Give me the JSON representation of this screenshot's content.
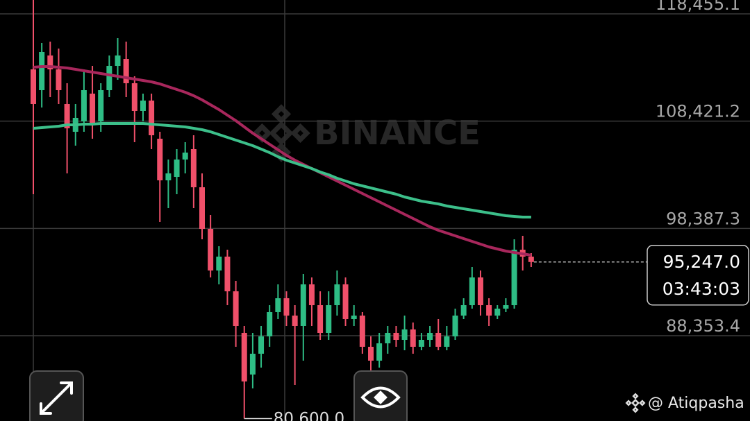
{
  "chart_data": {
    "type": "candlestick",
    "watermark": "BINANCE",
    "credit": "@ Atiqpasha",
    "up_color": "#2ebd85",
    "down_color": "#f0506a",
    "ylim": [
      80376,
      119752
    ],
    "yticks": [
      {
        "value": 88353.4,
        "label": "88,353.4"
      },
      {
        "value": 98387.3,
        "label": "98,387.3"
      },
      {
        "value": 108421.2,
        "label": "108,421.2"
      },
      {
        "value": 118455.1,
        "label": "118,455.1"
      }
    ],
    "grid": true,
    "open": [
      113265,
      111319,
      114562,
      113265,
      110022,
      107427,
      108400,
      110995,
      108400,
      111319,
      113589,
      114238,
      111968,
      109373,
      110346,
      106778,
      102886,
      103210,
      104832,
      105805,
      102237,
      98345,
      94453,
      95750,
      92507,
      88614,
      84722,
      86668,
      88290,
      90560,
      91858,
      90236,
      89263,
      93155,
      91209,
      88614,
      91209,
      93155,
      89912,
      90236,
      87317,
      86020,
      87641,
      88614,
      87966,
      88939,
      87317,
      87966,
      88614,
      87317,
      88290,
      90236,
      91209,
      93804,
      91209,
      90236,
      90885,
      91209,
      96398,
      95750
    ],
    "high": [
      119752,
      115730,
      115860,
      115211,
      111968,
      110022,
      113265,
      113589,
      111968,
      114562,
      116184,
      115860,
      112616,
      110995,
      110995,
      107427,
      104832,
      105805,
      106454,
      107102,
      103535,
      99642,
      96723,
      96398,
      93480,
      89263,
      88614,
      89263,
      91209,
      93155,
      92507,
      91209,
      94128,
      93804,
      92507,
      92507,
      94453,
      93804,
      91209,
      90560,
      88290,
      88614,
      89263,
      89263,
      90236,
      89587,
      88614,
      89263,
      89912,
      89263,
      90885,
      91858,
      94777,
      94453,
      91858,
      91209,
      91858,
      97372,
      97696,
      96074
    ],
    "low": [
      101588,
      109697,
      110670,
      110022,
      103535,
      106129,
      107427,
      106778,
      107427,
      110670,
      112292,
      110670,
      106454,
      108400,
      105805,
      98994,
      100291,
      101588,
      103535,
      100291,
      97372,
      93804,
      93155,
      91209,
      87317,
      80600,
      83425,
      85371,
      87317,
      89912,
      89263,
      83749,
      86020,
      89263,
      87966,
      87966,
      90236,
      89263,
      89263,
      86668,
      85047,
      85371,
      86668,
      87317,
      86993,
      86668,
      86993,
      87317,
      86993,
      86993,
      87966,
      89912,
      90885,
      90236,
      89263,
      89912,
      90560,
      90885,
      94453,
      94777
    ],
    "close": [
      110022,
      114887,
      113265,
      111319,
      107751,
      108724,
      111319,
      108075,
      111319,
      113589,
      114562,
      111968,
      109373,
      110346,
      107102,
      102886,
      103535,
      104832,
      105481,
      102237,
      98345,
      94453,
      95750,
      92507,
      89263,
      84074,
      86668,
      88290,
      90560,
      91858,
      90236,
      89263,
      93155,
      91209,
      88614,
      91209,
      93155,
      89912,
      90236,
      87317,
      86020,
      87641,
      88614,
      87966,
      88939,
      87317,
      87966,
      88614,
      87317,
      88290,
      90236,
      91209,
      93804,
      91209,
      90236,
      90885,
      91209,
      96398,
      95750,
      95247
    ],
    "moving_averages": [
      {
        "color": "#a8275c",
        "values": [
          113460,
          113524,
          113524,
          113460,
          113395,
          113265,
          113135,
          113006,
          112876,
          112746,
          112616,
          112487,
          112357,
          112227,
          112097,
          111903,
          111643,
          111384,
          111124,
          110800,
          110411,
          109957,
          109503,
          108984,
          108465,
          107881,
          107297,
          106778,
          106259,
          105740,
          105221,
          104767,
          104378,
          103989,
          103599,
          103210,
          102821,
          102432,
          102042,
          101653,
          101264,
          100875,
          100486,
          100096,
          99707,
          99318,
          98929,
          98540,
          98215,
          97956,
          97696,
          97437,
          97177,
          96918,
          96658,
          96464,
          96269,
          96139,
          96010,
          95880
        ]
      },
      {
        "color": "#3cbf8a",
        "values": [
          107751,
          107816,
          107881,
          107946,
          108075,
          108075,
          108140,
          108140,
          108205,
          108205,
          108205,
          108205,
          108205,
          108205,
          108140,
          108075,
          108011,
          107946,
          107881,
          107751,
          107621,
          107427,
          107167,
          106908,
          106648,
          106389,
          106129,
          105805,
          105481,
          105091,
          104767,
          104508,
          104248,
          103989,
          103664,
          103405,
          103080,
          102821,
          102561,
          102367,
          102172,
          101978,
          101783,
          101588,
          101329,
          101134,
          100940,
          100810,
          100680,
          100486,
          100356,
          100226,
          100096,
          99967,
          99837,
          99707,
          99577,
          99513,
          99448,
          99448
        ]
      }
    ],
    "last_price": {
      "value": 95247.0,
      "label": "95,247.0"
    },
    "countdown": "03:43:03",
    "low_marker": {
      "value": 80600,
      "label": "80,600.0"
    }
  }
}
